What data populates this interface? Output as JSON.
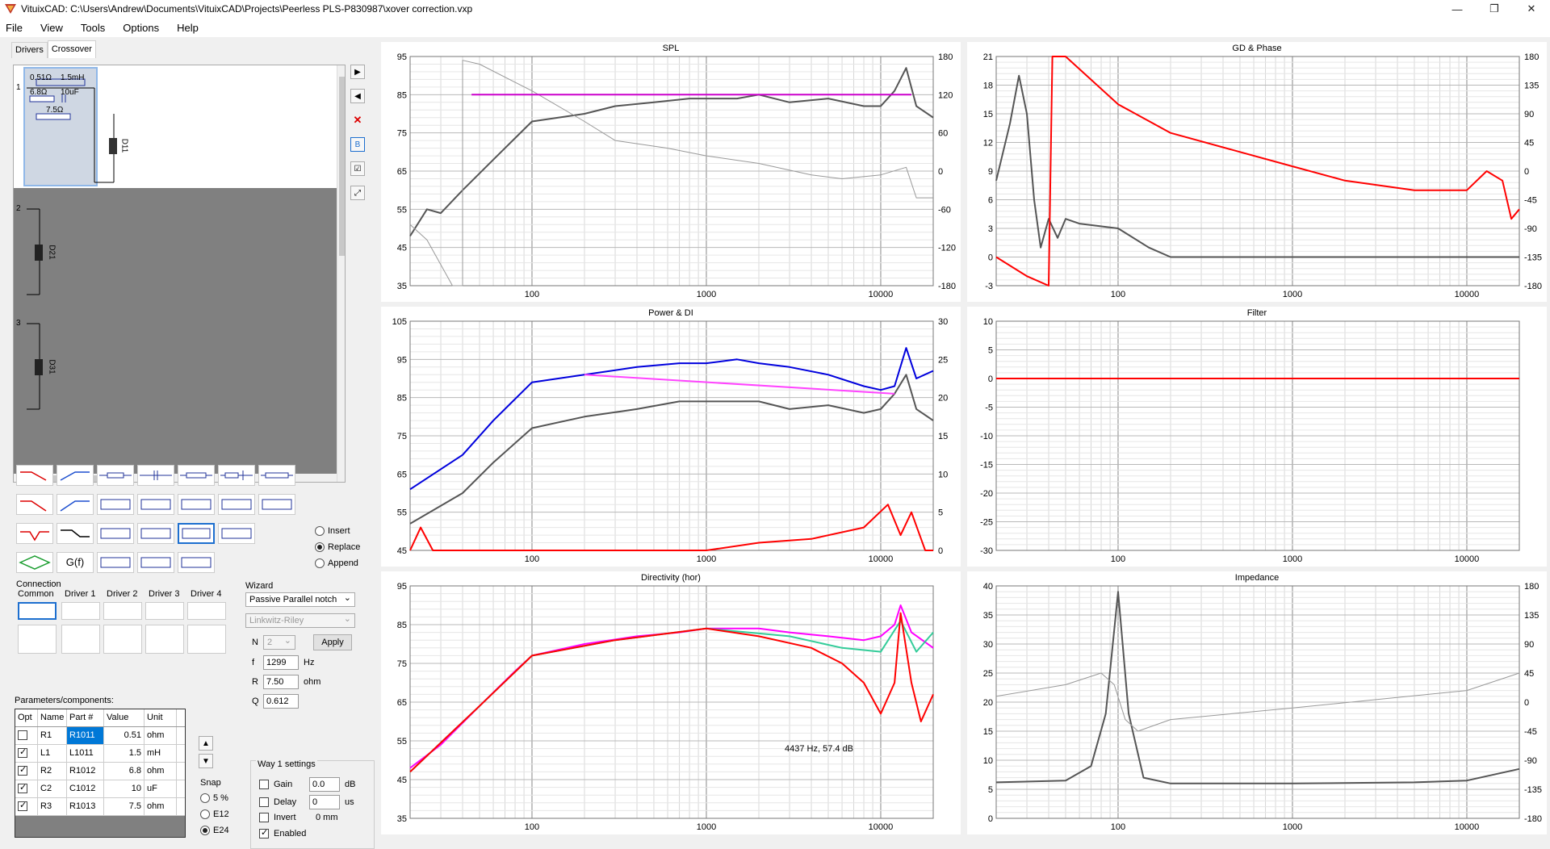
{
  "window": {
    "title": "VituixCAD: C:\\Users\\Andrew\\Documents\\VituixCAD\\Projects\\Peerless PLS-P830987\\xover correction.vxp"
  },
  "menu": [
    "File",
    "View",
    "Tools",
    "Options",
    "Help"
  ],
  "tabs": [
    "Drivers",
    "Crossover"
  ],
  "schematic": {
    "way1_components": [
      "0.51Ω",
      "1.5mH",
      "6.8Ω",
      "10uF",
      "7.5Ω"
    ],
    "way_numbers": [
      "1",
      "2",
      "3"
    ],
    "driver_labels": [
      "D11",
      "D21",
      "D31"
    ]
  },
  "palette_special": {
    "gf": "G(f)"
  },
  "mode": {
    "options": [
      "Insert",
      "Replace",
      "Append"
    ],
    "selected": "Replace"
  },
  "connection": {
    "label": "Connection",
    "columns": [
      "Common",
      "Driver 1",
      "Driver 2",
      "Driver 3",
      "Driver 4"
    ]
  },
  "wizard": {
    "label": "Wizard",
    "type": "Passive Parallel notch",
    "alignment": "Linkwitz-Riley",
    "n_label": "N",
    "n_value": "2",
    "apply": "Apply",
    "f_label": "f",
    "f_value": "1299",
    "f_unit": "Hz",
    "r_label": "R",
    "r_value": "7.50",
    "r_unit": "ohm",
    "q_label": "Q",
    "q_value": "0.612"
  },
  "params": {
    "label": "Parameters/components:",
    "headers": [
      "Opt",
      "Name",
      "Part #",
      "Value",
      "Unit"
    ],
    "rows": [
      {
        "opt": false,
        "name": "R1",
        "part": "R1011",
        "value": "0.51",
        "unit": "ohm"
      },
      {
        "opt": true,
        "name": "L1",
        "part": "L1011",
        "value": "1.5",
        "unit": "mH"
      },
      {
        "opt": true,
        "name": "R2",
        "part": "R1012",
        "value": "6.8",
        "unit": "ohm"
      },
      {
        "opt": true,
        "name": "C2",
        "part": "C1012",
        "value": "10",
        "unit": "uF"
      },
      {
        "opt": true,
        "name": "R3",
        "part": "R1013",
        "value": "7.5",
        "unit": "ohm"
      }
    ]
  },
  "snap": {
    "label": "Snap",
    "options": [
      "5 %",
      "E12",
      "E24"
    ],
    "selected": "E24"
  },
  "way_settings": {
    "label": "Way 1 settings",
    "gain_label": "Gain",
    "gain_value": "0.0",
    "gain_unit": "dB",
    "delay_label": "Delay",
    "delay_value": "0",
    "delay_unit": "us",
    "invert_label": "Invert",
    "invert_value": "0 mm",
    "enabled_label": "Enabled"
  },
  "charts": {
    "spl": {
      "title": "SPL"
    },
    "gd": {
      "title": "GD & Phase"
    },
    "power": {
      "title": "Power & DI"
    },
    "filter": {
      "title": "Filter"
    },
    "directivity": {
      "title": "Directivity (hor)",
      "annotation": "4437 Hz, 57.4 dB"
    },
    "impedance": {
      "title": "Impedance"
    }
  },
  "chart_data": [
    {
      "type": "line",
      "title": "SPL",
      "xscale": "log",
      "xlim": [
        20,
        20000
      ],
      "xticks": [
        100,
        1000,
        10000
      ],
      "ylim": [
        35,
        95
      ],
      "yticks": [
        35,
        45,
        55,
        65,
        75,
        85,
        95
      ],
      "y2lim": [
        -180,
        180
      ],
      "y2ticks": [
        -180,
        -120,
        -60,
        0,
        60,
        120,
        180
      ],
      "series": [
        {
          "color": "#555555",
          "points": [
            [
              20,
              48
            ],
            [
              25,
              55
            ],
            [
              30,
              54
            ],
            [
              40,
              60
            ],
            [
              60,
              68
            ],
            [
              100,
              78
            ],
            [
              200,
              80
            ],
            [
              300,
              82
            ],
            [
              500,
              83
            ],
            [
              800,
              84
            ],
            [
              1000,
              84
            ],
            [
              1500,
              84
            ],
            [
              2000,
              85
            ],
            [
              3000,
              83
            ],
            [
              5000,
              84
            ],
            [
              8000,
              82
            ],
            [
              10000,
              82
            ],
            [
              12000,
              86
            ],
            [
              14000,
              92
            ],
            [
              16000,
              82
            ],
            [
              20000,
              79
            ]
          ]
        },
        {
          "color": "#999999",
          "points": [
            [
              20,
              51
            ],
            [
              25,
              47
            ],
            [
              35,
              35
            ],
            [
              40,
              35
            ],
            [
              40,
              94
            ],
            [
              50,
              93
            ],
            [
              100,
              86
            ],
            [
              200,
              78
            ],
            [
              300,
              73
            ],
            [
              600,
              71
            ],
            [
              1000,
              69
            ],
            [
              2000,
              67
            ],
            [
              4000,
              64
            ],
            [
              6000,
              63
            ],
            [
              10000,
              64
            ],
            [
              14000,
              66
            ],
            [
              16000,
              58
            ],
            [
              20000,
              58
            ]
          ]
        },
        {
          "color": "#cc00cc",
          "points": [
            [
              45,
              85
            ],
            [
              15000,
              85
            ]
          ]
        }
      ]
    },
    {
      "type": "line",
      "title": "GD & Phase",
      "xscale": "log",
      "xlim": [
        20,
        20000
      ],
      "xticks": [
        100,
        1000,
        10000
      ],
      "ylim": [
        -3,
        21
      ],
      "yticks": [
        -3,
        0,
        3,
        6,
        9,
        12,
        15,
        18,
        21
      ],
      "y2lim": [
        -180,
        180
      ],
      "y2ticks": [
        -180,
        -135,
        -90,
        -45,
        0,
        45,
        90,
        135,
        180
      ],
      "series": [
        {
          "color": "#555555",
          "points": [
            [
              20,
              8
            ],
            [
              24,
              14
            ],
            [
              27,
              19
            ],
            [
              30,
              15
            ],
            [
              33,
              6
            ],
            [
              36,
              1
            ],
            [
              40,
              4
            ],
            [
              45,
              2
            ],
            [
              50,
              4
            ],
            [
              60,
              3.5
            ],
            [
              100,
              3
            ],
            [
              150,
              1
            ],
            [
              200,
              0
            ],
            [
              300,
              0
            ],
            [
              1000,
              0
            ],
            [
              10000,
              0
            ],
            [
              20000,
              0
            ]
          ]
        },
        {
          "color": "#ff0000",
          "points": [
            [
              20,
              0
            ],
            [
              30,
              -2
            ],
            [
              40,
              -3
            ],
            [
              42,
              21
            ],
            [
              50,
              21
            ],
            [
              100,
              16
            ],
            [
              200,
              13
            ],
            [
              500,
              11
            ],
            [
              1000,
              9.5
            ],
            [
              2000,
              8
            ],
            [
              5000,
              7
            ],
            [
              10000,
              7
            ],
            [
              13000,
              9
            ],
            [
              16000,
              8
            ],
            [
              18000,
              4
            ],
            [
              20000,
              5
            ]
          ]
        }
      ]
    },
    {
      "type": "line",
      "title": "Power & DI",
      "xscale": "log",
      "xlim": [
        20,
        20000
      ],
      "xticks": [
        100,
        1000,
        10000
      ],
      "ylim": [
        45,
        105
      ],
      "yticks": [
        45,
        55,
        65,
        75,
        85,
        95,
        105
      ],
      "y2lim": [
        0,
        30
      ],
      "y2ticks": [
        0,
        5,
        10,
        15,
        20,
        25,
        30
      ],
      "series": [
        {
          "color": "#0000dd",
          "points": [
            [
              20,
              61
            ],
            [
              40,
              70
            ],
            [
              60,
              79
            ],
            [
              100,
              89
            ],
            [
              200,
              91
            ],
            [
              400,
              93
            ],
            [
              700,
              94
            ],
            [
              1000,
              94
            ],
            [
              1500,
              95
            ],
            [
              2000,
              94
            ],
            [
              3000,
              93
            ],
            [
              5000,
              91
            ],
            [
              8000,
              88
            ],
            [
              10000,
              87
            ],
            [
              12000,
              88
            ],
            [
              14000,
              98
            ],
            [
              16000,
              90
            ],
            [
              20000,
              92
            ]
          ]
        },
        {
          "color": "#555555",
          "points": [
            [
              20,
              52
            ],
            [
              40,
              60
            ],
            [
              60,
              68
            ],
            [
              100,
              77
            ],
            [
              200,
              80
            ],
            [
              400,
              82
            ],
            [
              700,
              84
            ],
            [
              1000,
              84
            ],
            [
              2000,
              84
            ],
            [
              3000,
              82
            ],
            [
              5000,
              83
            ],
            [
              8000,
              81
            ],
            [
              10000,
              82
            ],
            [
              12000,
              86
            ],
            [
              14000,
              91
            ],
            [
              16000,
              82
            ],
            [
              20000,
              79
            ]
          ]
        },
        {
          "color": "#ff44ff",
          "points": [
            [
              200,
              91
            ],
            [
              12000,
              86
            ]
          ]
        },
        {
          "color": "#ff0000",
          "points": [
            [
              20,
              0
            ],
            [
              23,
              3
            ],
            [
              27,
              0
            ],
            [
              50,
              0
            ],
            [
              300,
              0
            ],
            [
              1000,
              0
            ],
            [
              2000,
              1
            ],
            [
              4000,
              1.5
            ],
            [
              8000,
              3
            ],
            [
              11000,
              6
            ],
            [
              13000,
              2
            ],
            [
              15000,
              5
            ],
            [
              18000,
              0
            ],
            [
              20000,
              0
            ]
          ]
        }
      ]
    },
    {
      "type": "line",
      "title": "Filter",
      "xscale": "log",
      "xlim": [
        20,
        20000
      ],
      "xticks": [
        100,
        1000,
        10000
      ],
      "ylim": [
        -30,
        10
      ],
      "yticks": [
        -30,
        -25,
        -20,
        -15,
        -10,
        -5,
        0,
        5,
        10
      ],
      "series": [
        {
          "color": "#ff0000",
          "points": [
            [
              20,
              0
            ],
            [
              20000,
              0
            ]
          ]
        }
      ]
    },
    {
      "type": "line",
      "title": "Directivity (hor)",
      "xscale": "log",
      "xlim": [
        20,
        20000
      ],
      "xticks": [
        100,
        1000,
        10000
      ],
      "ylim": [
        35,
        95
      ],
      "yticks": [
        35,
        45,
        55,
        65,
        75,
        85,
        95
      ],
      "series": [
        {
          "color": "#ff00ff",
          "points": [
            [
              20,
              48
            ],
            [
              30,
              54
            ],
            [
              50,
              64
            ],
            [
              80,
              73
            ],
            [
              100,
              77
            ],
            [
              200,
              80
            ],
            [
              400,
              82
            ],
            [
              700,
              83
            ],
            [
              1000,
              84
            ],
            [
              2000,
              84
            ],
            [
              3000,
              83
            ],
            [
              5000,
              82
            ],
            [
              8000,
              81
            ],
            [
              10000,
              82
            ],
            [
              12000,
              85
            ],
            [
              13000,
              90
            ],
            [
              15000,
              83
            ],
            [
              20000,
              79
            ]
          ]
        },
        {
          "color": "#33cc99",
          "points": [
            [
              20,
              47
            ],
            [
              50,
              64
            ],
            [
              100,
              77
            ],
            [
              300,
              81
            ],
            [
              1000,
              84
            ],
            [
              3000,
              82
            ],
            [
              6000,
              79
            ],
            [
              10000,
              78
            ],
            [
              13000,
              86
            ],
            [
              16000,
              78
            ],
            [
              20000,
              83
            ]
          ]
        },
        {
          "color": "#ff0000",
          "points": [
            [
              20,
              47
            ],
            [
              50,
              64
            ],
            [
              100,
              77
            ],
            [
              300,
              81
            ],
            [
              1000,
              84
            ],
            [
              2000,
              82
            ],
            [
              4000,
              79
            ],
            [
              6000,
              75
            ],
            [
              8000,
              70
            ],
            [
              10000,
              62
            ],
            [
              12000,
              70
            ],
            [
              13000,
              88
            ],
            [
              15000,
              70
            ],
            [
              17000,
              60
            ],
            [
              20000,
              67
            ]
          ]
        }
      ]
    },
    {
      "type": "line",
      "title": "Impedance",
      "xscale": "log",
      "xlim": [
        20,
        20000
      ],
      "xticks": [
        100,
        1000,
        10000
      ],
      "ylim": [
        0,
        40
      ],
      "yticks": [
        0,
        5,
        10,
        15,
        20,
        25,
        30,
        35,
        40
      ],
      "y2lim": [
        -180,
        180
      ],
      "y2ticks": [
        -180,
        -135,
        -90,
        -45,
        0,
        45,
        90,
        135,
        180
      ],
      "series": [
        {
          "color": "#555555",
          "points": [
            [
              20,
              6.2
            ],
            [
              50,
              6.5
            ],
            [
              70,
              9
            ],
            [
              85,
              18
            ],
            [
              100,
              39
            ],
            [
              115,
              18
            ],
            [
              140,
              7
            ],
            [
              200,
              6
            ],
            [
              1000,
              6
            ],
            [
              5000,
              6.2
            ],
            [
              10000,
              6.5
            ],
            [
              20000,
              8.5
            ]
          ]
        },
        {
          "color": "#999999",
          "points": [
            [
              20,
              21
            ],
            [
              50,
              23
            ],
            [
              80,
              25
            ],
            [
              95,
              23
            ],
            [
              110,
              17
            ],
            [
              130,
              15
            ],
            [
              200,
              17
            ],
            [
              1000,
              19
            ],
            [
              10000,
              22
            ],
            [
              20000,
              25
            ]
          ]
        }
      ]
    }
  ]
}
